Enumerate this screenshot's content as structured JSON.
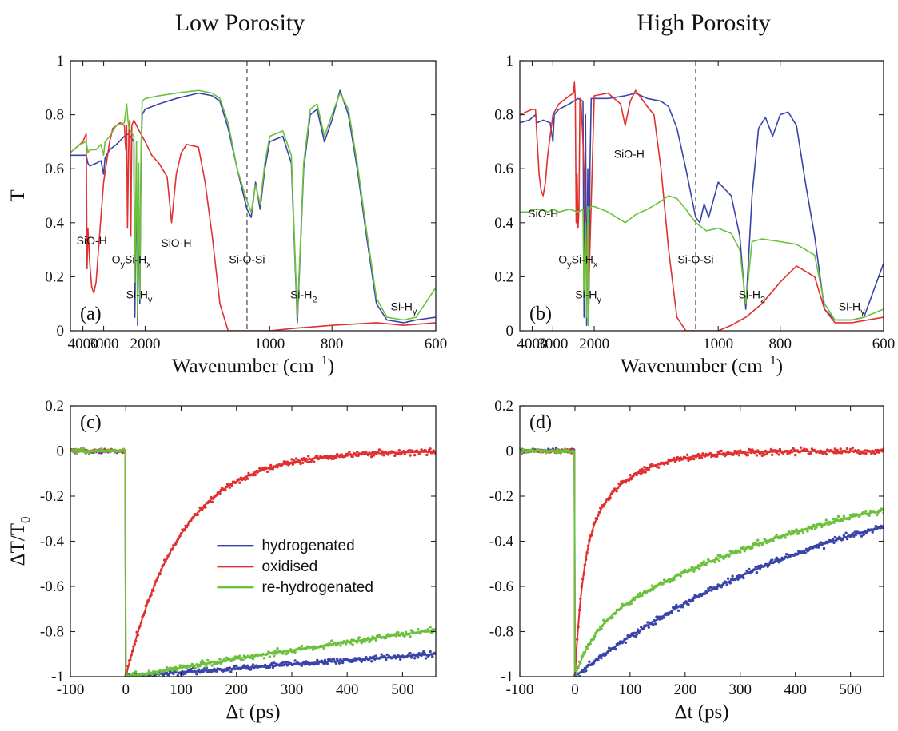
{
  "colors": {
    "hydrogenated": "#3a44a8",
    "oxidised": "#e03030",
    "rehydrogenated": "#6cc13c"
  },
  "headers": {
    "left": "Low Porosity",
    "right": "High Porosity"
  },
  "chart_data": [
    {
      "id": "a",
      "panel_label": "(a)",
      "type": "line",
      "xlabel": "Wavenumber (cm",
      "xlabel_sup": "−1",
      "xlabel_end": ")",
      "ylabel": "T",
      "x_scale": "reciprocal",
      "xlim": [
        5000,
        600
      ],
      "ylim": [
        0,
        1
      ],
      "xticks": [
        4000,
        3000,
        2000,
        1000,
        800,
        600
      ],
      "yticks": [
        0,
        0.2,
        0.4,
        0.6,
        0.8,
        1
      ],
      "ytick_labels": [
        "0",
        "0.2",
        "0.4",
        "0.6",
        "0.8",
        "1"
      ],
      "vline": 1100,
      "annotations": [
        {
          "base": "SiO-H",
          "x": 3500,
          "y": 0.32
        },
        {
          "pre": "O",
          "pre_sub": "y",
          "base": "Si-H",
          "sub": "x",
          "x": 2250,
          "y": 0.25
        },
        {
          "base": "Si-H",
          "sub": "y",
          "x": 2100,
          "y": 0.12
        },
        {
          "base": "SiO-H",
          "x": 1600,
          "y": 0.31
        },
        {
          "base": "Si-O-Si",
          "x": 1100,
          "y": 0.25
        },
        {
          "base": "Si-H",
          "sub": "2",
          "x": 880,
          "y": 0.12
        },
        {
          "base": "Si-H",
          "sub": "y",
          "x": 650,
          "y": 0.075
        }
      ],
      "series": [
        {
          "name": "hydrogenated",
          "color_key": "hydrogenated",
          "x": [
            5000,
            4200,
            3800,
            3700,
            3600,
            3300,
            3100,
            3000,
            2950,
            2800,
            2600,
            2400,
            2300,
            2200,
            2180,
            2150,
            2130,
            2110,
            2090,
            2070,
            2050,
            2000,
            1800,
            1600,
            1400,
            1300,
            1250,
            1200,
            1150,
            1100,
            1080,
            1060,
            1040,
            1020,
            1000,
            950,
            920,
            900,
            880,
            860,
            840,
            820,
            800,
            780,
            760,
            740,
            720,
            700,
            680,
            650,
            630,
            600
          ],
          "y": [
            0.65,
            0.65,
            0.65,
            0.62,
            0.61,
            0.62,
            0.63,
            0.58,
            0.64,
            0.67,
            0.69,
            0.72,
            0.73,
            0.7,
            0.05,
            0.62,
            0.02,
            0.55,
            0.1,
            0.6,
            0.8,
            0.82,
            0.84,
            0.86,
            0.88,
            0.87,
            0.85,
            0.75,
            0.6,
            0.45,
            0.42,
            0.55,
            0.45,
            0.6,
            0.7,
            0.72,
            0.62,
            0.03,
            0.6,
            0.8,
            0.82,
            0.7,
            0.78,
            0.89,
            0.8,
            0.6,
            0.35,
            0.1,
            0.04,
            0.03,
            0.04,
            0.05
          ]
        },
        {
          "name": "oxidised",
          "color_key": "oxidised",
          "x": [
            5000,
            4000,
            3800,
            3750,
            3700,
            3600,
            3500,
            3400,
            3300,
            3200,
            3000,
            2800,
            2700,
            2500,
            2400,
            2370,
            2350,
            2330,
            2300,
            2280,
            2260,
            2240,
            2200,
            2100,
            2000,
            1900,
            1800,
            1700,
            1650,
            1600,
            1550,
            1500,
            1400,
            1350,
            1300,
            1250,
            1200,
            1150,
            1100,
            1000,
            900,
            800,
            700,
            650,
            600
          ],
          "y": [
            0.66,
            0.7,
            0.73,
            0.23,
            0.38,
            0.25,
            0.16,
            0.14,
            0.18,
            0.3,
            0.55,
            0.7,
            0.75,
            0.77,
            0.76,
            0.67,
            0.76,
            0.38,
            0.75,
            0.78,
            0.35,
            0.76,
            0.78,
            0.74,
            0.7,
            0.65,
            0.62,
            0.57,
            0.4,
            0.58,
            0.66,
            0.69,
            0.68,
            0.55,
            0.35,
            0.1,
            0.0,
            0.0,
            0.0,
            0.0,
            0.01,
            0.02,
            0.03,
            0.02,
            0.03
          ]
        },
        {
          "name": "re-hydrogenated",
          "color_key": "rehydrogenated",
          "x": [
            5000,
            4200,
            3800,
            3700,
            3600,
            3300,
            3100,
            3000,
            2950,
            2800,
            2600,
            2400,
            2350,
            2320,
            2300,
            2200,
            2180,
            2150,
            2130,
            2110,
            2090,
            2070,
            2050,
            2000,
            1800,
            1600,
            1400,
            1300,
            1250,
            1200,
            1150,
            1100,
            1080,
            1060,
            1040,
            1020,
            1000,
            950,
            920,
            900,
            880,
            860,
            840,
            820,
            800,
            780,
            760,
            740,
            720,
            700,
            680,
            650,
            630,
            600
          ],
          "y": [
            0.66,
            0.69,
            0.7,
            0.66,
            0.67,
            0.67,
            0.69,
            0.65,
            0.7,
            0.72,
            0.76,
            0.77,
            0.84,
            0.78,
            0.75,
            0.72,
            0.18,
            0.7,
            0.05,
            0.62,
            0.12,
            0.65,
            0.85,
            0.86,
            0.87,
            0.88,
            0.89,
            0.88,
            0.86,
            0.77,
            0.6,
            0.48,
            0.44,
            0.54,
            0.47,
            0.62,
            0.72,
            0.74,
            0.65,
            0.05,
            0.62,
            0.82,
            0.84,
            0.72,
            0.8,
            0.88,
            0.82,
            0.62,
            0.37,
            0.12,
            0.05,
            0.04,
            0.05,
            0.16
          ]
        }
      ]
    },
    {
      "id": "b",
      "panel_label": "(b)",
      "type": "line",
      "xlabel": "Wavenumber (cm",
      "xlabel_sup": "−1",
      "xlabel_end": ")",
      "ylabel": "",
      "x_scale": "reciprocal",
      "xlim": [
        5000,
        600
      ],
      "ylim": [
        0,
        1
      ],
      "xticks": [
        4000,
        3000,
        2000,
        1000,
        800,
        600
      ],
      "yticks": [
        0,
        0.2,
        0.4,
        0.6,
        0.8,
        1
      ],
      "ytick_labels": [
        "0",
        "0.2",
        "0.4",
        "0.6",
        "0.8",
        "1"
      ],
      "vline": 1100,
      "annotations": [
        {
          "base": "SiO-H",
          "x": 3400,
          "y": 0.42
        },
        {
          "pre": "O",
          "pre_sub": "y",
          "base": "Si-H",
          "sub": "x",
          "x": 2300,
          "y": 0.25
        },
        {
          "base": "Si-H",
          "sub": "y",
          "x": 2100,
          "y": 0.12
        },
        {
          "base": "SiO-H",
          "x": 1560,
          "y": 0.64
        },
        {
          "base": "Si-O-Si",
          "x": 1100,
          "y": 0.25
        },
        {
          "base": "Si-H",
          "sub": "2",
          "x": 880,
          "y": 0.12
        },
        {
          "base": "Si-H",
          "sub": "y",
          "x": 650,
          "y": 0.075
        }
      ],
      "series": [
        {
          "name": "hydrogenated",
          "color_key": "hydrogenated",
          "x": [
            5000,
            4200,
            3800,
            3700,
            3400,
            3100,
            3000,
            2950,
            2800,
            2500,
            2300,
            2200,
            2180,
            2150,
            2130,
            2110,
            2090,
            2070,
            2050,
            2000,
            1800,
            1600,
            1500,
            1400,
            1300,
            1250,
            1200,
            1150,
            1100,
            1080,
            1060,
            1040,
            1000,
            950,
            920,
            900,
            880,
            860,
            840,
            820,
            800,
            780,
            760,
            740,
            720,
            700,
            680,
            650,
            630,
            600
          ],
          "y": [
            0.77,
            0.78,
            0.8,
            0.77,
            0.78,
            0.77,
            0.7,
            0.8,
            0.82,
            0.84,
            0.86,
            0.85,
            0.05,
            0.8,
            0.02,
            0.6,
            0.1,
            0.62,
            0.86,
            0.86,
            0.86,
            0.87,
            0.88,
            0.86,
            0.85,
            0.83,
            0.75,
            0.6,
            0.42,
            0.4,
            0.47,
            0.42,
            0.55,
            0.5,
            0.35,
            0.08,
            0.5,
            0.75,
            0.79,
            0.72,
            0.8,
            0.81,
            0.76,
            0.55,
            0.35,
            0.08,
            0.04,
            0.04,
            0.05,
            0.25
          ]
        },
        {
          "name": "oxidised",
          "color_key": "oxidised",
          "x": [
            5000,
            4000,
            3800,
            3700,
            3600,
            3500,
            3400,
            3300,
            3200,
            3000,
            2800,
            2500,
            2400,
            2380,
            2360,
            2340,
            2320,
            2300,
            2280,
            2260,
            2240,
            2200,
            2100,
            2000,
            1800,
            1650,
            1600,
            1550,
            1500,
            1400,
            1350,
            1300,
            1250,
            1200,
            1150,
            1100,
            1000,
            950,
            900,
            850,
            800,
            760,
            720,
            700,
            680,
            650,
            600
          ],
          "y": [
            0.8,
            0.82,
            0.82,
            0.7,
            0.58,
            0.52,
            0.5,
            0.55,
            0.65,
            0.8,
            0.84,
            0.87,
            0.88,
            0.92,
            0.86,
            0.4,
            0.58,
            0.38,
            0.45,
            0.86,
            0.85,
            0.7,
            0.1,
            0.87,
            0.88,
            0.84,
            0.76,
            0.85,
            0.89,
            0.83,
            0.8,
            0.6,
            0.3,
            0.05,
            0.0,
            0.0,
            0.0,
            0.02,
            0.05,
            0.1,
            0.18,
            0.24,
            0.2,
            0.08,
            0.03,
            0.03,
            0.05
          ]
        },
        {
          "name": "re-hydrogenated",
          "color_key": "rehydrogenated",
          "x": [
            5000,
            4200,
            3800,
            3500,
            3200,
            3000,
            2800,
            2500,
            2300,
            2200,
            2180,
            2150,
            2130,
            2110,
            2100,
            2090,
            2050,
            2000,
            1800,
            1600,
            1500,
            1400,
            1300,
            1250,
            1200,
            1150,
            1100,
            1050,
            1000,
            950,
            920,
            900,
            880,
            850,
            800,
            760,
            720,
            700,
            680,
            650,
            630,
            600
          ],
          "y": [
            0.44,
            0.44,
            0.45,
            0.45,
            0.44,
            0.45,
            0.44,
            0.45,
            0.44,
            0.45,
            0.12,
            0.4,
            0.05,
            0.46,
            0.02,
            0.45,
            0.46,
            0.46,
            0.44,
            0.4,
            0.43,
            0.45,
            0.48,
            0.5,
            0.49,
            0.45,
            0.4,
            0.37,
            0.38,
            0.36,
            0.3,
            0.1,
            0.33,
            0.34,
            0.33,
            0.32,
            0.28,
            0.1,
            0.04,
            0.04,
            0.05,
            0.08
          ]
        }
      ]
    },
    {
      "id": "c",
      "panel_label": "(c)",
      "type": "scatter",
      "xlabel": "Δt (ps)",
      "ylabel": "ΔT/T",
      "ylabel_sub": "0",
      "xlim": [
        -100,
        560
      ],
      "ylim": [
        -1,
        0.2
      ],
      "xticks": [
        -100,
        0,
        100,
        200,
        300,
        400,
        500
      ],
      "yticks": [
        -1,
        -0.8,
        -0.6,
        -0.4,
        -0.2,
        0,
        0.2
      ],
      "ytick_labels": [
        "-1",
        "-0.8",
        "-0.6",
        "-0.4",
        "-0.2",
        "0",
        "0.2"
      ],
      "legend": {
        "position": "center",
        "entries": [
          "hydrogenated",
          "oxidised",
          "re-hydrogenated"
        ]
      },
      "series": [
        {
          "name": "hydrogenated",
          "color_key": "hydrogenated",
          "fit": {
            "model": "exp",
            "amplitude": -1.0,
            "tau_ps": 5300
          }
        },
        {
          "name": "oxidised",
          "color_key": "oxidised",
          "fit": {
            "model": "exp",
            "amplitude": -1.0,
            "tau_ps": 100
          }
        },
        {
          "name": "re-hydrogenated",
          "color_key": "rehydrogenated",
          "fit": {
            "model": "exp",
            "amplitude": -1.0,
            "tau_ps": 2400
          }
        }
      ]
    },
    {
      "id": "d",
      "panel_label": "(d)",
      "type": "scatter",
      "xlabel": "Δt (ps)",
      "ylabel": "",
      "xlim": [
        -100,
        560
      ],
      "ylim": [
        -1,
        0.2
      ],
      "xticks": [
        -100,
        0,
        100,
        200,
        300,
        400,
        500
      ],
      "yticks": [
        -1,
        -0.8,
        -0.6,
        -0.4,
        -0.2,
        0,
        0.2
      ],
      "ytick_labels": [
        "-1",
        "-0.8",
        "-0.6",
        "-0.4",
        "-0.2",
        "0",
        "0.2"
      ],
      "series": [
        {
          "name": "hydrogenated",
          "color_key": "hydrogenated",
          "fit": {
            "model": "exp",
            "amplitude": -1.0,
            "tau_ps": 510
          }
        },
        {
          "name": "oxidised",
          "color_key": "oxidised",
          "fit": {
            "model": "biexp",
            "a1": -0.55,
            "tau1_ps": 14,
            "a2": -0.45,
            "tau2_ps": 75
          }
        },
        {
          "name": "re-hydrogenated",
          "color_key": "rehydrogenated",
          "fit": {
            "model": "biexp",
            "a1": -0.2,
            "tau1_ps": 35,
            "a2": -0.8,
            "tau2_ps": 500
          }
        }
      ]
    }
  ]
}
